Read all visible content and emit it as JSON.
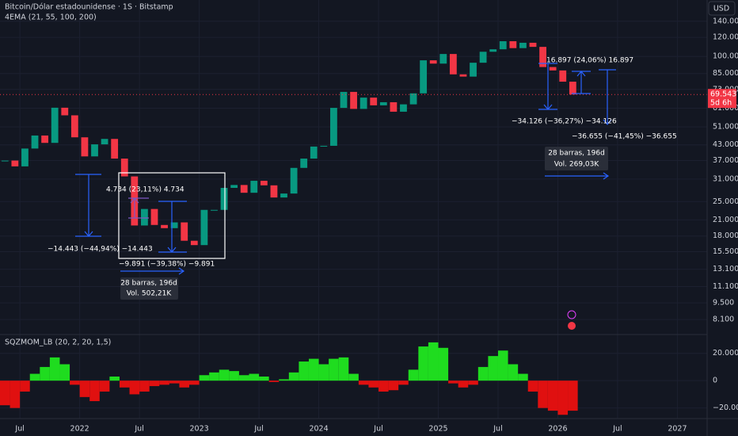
{
  "header": {
    "symbol": "Bitcoin/Dólar estadounidense · 1S · Bitstamp",
    "indicator": "4EMA (21, 55, 100, 200)",
    "currency": "USD",
    "countdown": "5d 6h"
  },
  "chart_data": [
    {
      "type": "candlestick",
      "log_scale": true,
      "grid": true,
      "up_color": "#089981",
      "down_color": "#f23645",
      "x": [
        "2021-05",
        "2021-06",
        "2021-07",
        "2021-08",
        "2021-09",
        "2021-10",
        "2021-11",
        "2021-12",
        "2022-01",
        "2022-02",
        "2022-03",
        "2022-04",
        "2022-05",
        "2022-06",
        "2022-07",
        "2022-08",
        "2022-09",
        "2022-10",
        "2022-11",
        "2022-12",
        "2023-01",
        "2023-02",
        "2023-03",
        "2023-04",
        "2023-05",
        "2023-06",
        "2023-07",
        "2023-08",
        "2023-09",
        "2023-10",
        "2023-11",
        "2023-12",
        "2024-01",
        "2024-02",
        "2024-03",
        "2024-04",
        "2024-05",
        "2024-06",
        "2024-07",
        "2024-08",
        "2024-09",
        "2024-10",
        "2024-11",
        "2024-12",
        "2025-01",
        "2025-02",
        "2025-03",
        "2025-04",
        "2025-05",
        "2025-06",
        "2025-07",
        "2025-08",
        "2025-09",
        "2025-10",
        "2025-11",
        "2025-12",
        "2026-01",
        "2026-02"
      ],
      "values": [
        37000,
        35000,
        41500,
        47000,
        43800,
        61300,
        57000,
        46200,
        38500,
        43200,
        45500,
        37700,
        31800,
        19900,
        23300,
        20000,
        19400,
        20500,
        17200,
        16500,
        23100,
        23100,
        28500,
        29300,
        27200,
        30500,
        29200,
        26000,
        27000,
        34500,
        37700,
        42300,
        42600,
        61200,
        71300,
        60600,
        67500,
        62700,
        64600,
        59000,
        63300,
        70300,
        96400,
        93400,
        102400,
        84300,
        82500,
        94200,
        104600,
        107100,
        115700,
        108300,
        114000,
        109600,
        90400,
        87500,
        78600,
        69543
      ],
      "last_price": {
        "value": 69543,
        "label": "69.543"
      },
      "xlim": [
        "2021-05",
        "2027-02"
      ],
      "xticks": [
        {
          "value": "2021-07",
          "label": "Jul"
        },
        {
          "value": "2022-01",
          "label": "2022"
        },
        {
          "value": "2022-07",
          "label": "Jul"
        },
        {
          "value": "2023-01",
          "label": "2023"
        },
        {
          "value": "2023-07",
          "label": "Jul"
        },
        {
          "value": "2024-01",
          "label": "2024"
        },
        {
          "value": "2024-07",
          "label": "Jul"
        },
        {
          "value": "2025-01",
          "label": "2025"
        },
        {
          "value": "2025-07",
          "label": "Jul"
        },
        {
          "value": "2026-01",
          "label": "2026"
        },
        {
          "value": "2026-07",
          "label": "Jul"
        },
        {
          "value": "2027-01",
          "label": "2027"
        }
      ],
      "ylim": [
        7130,
        171500
      ],
      "yticks": [
        {
          "value": 140000,
          "label": "140.000"
        },
        {
          "value": 120000,
          "label": "120.000"
        },
        {
          "value": 100000,
          "label": "100.000"
        },
        {
          "value": 85000,
          "label": "85.000"
        },
        {
          "value": 73000,
          "label": "73.000"
        },
        {
          "value": 61000,
          "label": "61.000"
        },
        {
          "value": 51000,
          "label": "51.000"
        },
        {
          "value": 43000,
          "label": "43.000"
        },
        {
          "value": 37000,
          "label": "37.000"
        },
        {
          "value": 31000,
          "label": "31.000"
        },
        {
          "value": 25000,
          "label": "25.000"
        },
        {
          "value": 21000,
          "label": "21.000"
        },
        {
          "value": 18000,
          "label": "18.000"
        },
        {
          "value": 15500,
          "label": "15.500"
        },
        {
          "value": 13100,
          "label": "13.100"
        },
        {
          "value": 11100,
          "label": "11.100"
        },
        {
          "value": 9500,
          "label": "9.500"
        },
        {
          "value": 8100,
          "label": "8.100"
        }
      ],
      "annotations": [
        "−14.443 (−44,94%) −14.443",
        "4.734 (23,11%) 4.734",
        "−9.891 (−39,38%) −9.891",
        "28 barras, 196d",
        "Vol. 502,21K",
        "16.897 (24,06%) 16.897",
        "−34.126 (−36,27%) −34.126",
        "−36.655 (−41,45%) −36.655",
        "28 barras, 196d",
        "Vol. 269,03K"
      ]
    },
    {
      "type": "bar",
      "title": "SQZMOM_LB (20, 2, 20, 1,5)",
      "positive_color": "#1fdc1f",
      "negative_color": "#e01010",
      "values": [
        -18000,
        -20000,
        -8000,
        5000,
        10000,
        17000,
        12000,
        -3000,
        -12000,
        -15000,
        -8000,
        3000,
        -5000,
        -10000,
        -8000,
        -4000,
        -3000,
        -2000,
        -5000,
        -3000,
        4000,
        6000,
        8000,
        7000,
        4000,
        5000,
        3000,
        -1000,
        1000,
        6000,
        14000,
        16000,
        12000,
        16000,
        17000,
        5000,
        -3000,
        -5000,
        -8000,
        -7000,
        -3000,
        8000,
        25000,
        28000,
        24000,
        -2000,
        -5000,
        -3000,
        10000,
        18000,
        22000,
        12000,
        5000,
        -8000,
        -20000,
        -22000,
        -25000,
        -22000
      ],
      "ylim": [
        -26000,
        32000
      ],
      "yticks": [
        {
          "value": 20000,
          "label": "20.000"
        },
        0,
        {
          "value": -20000,
          "label": "−20.000"
        }
      ]
    }
  ]
}
